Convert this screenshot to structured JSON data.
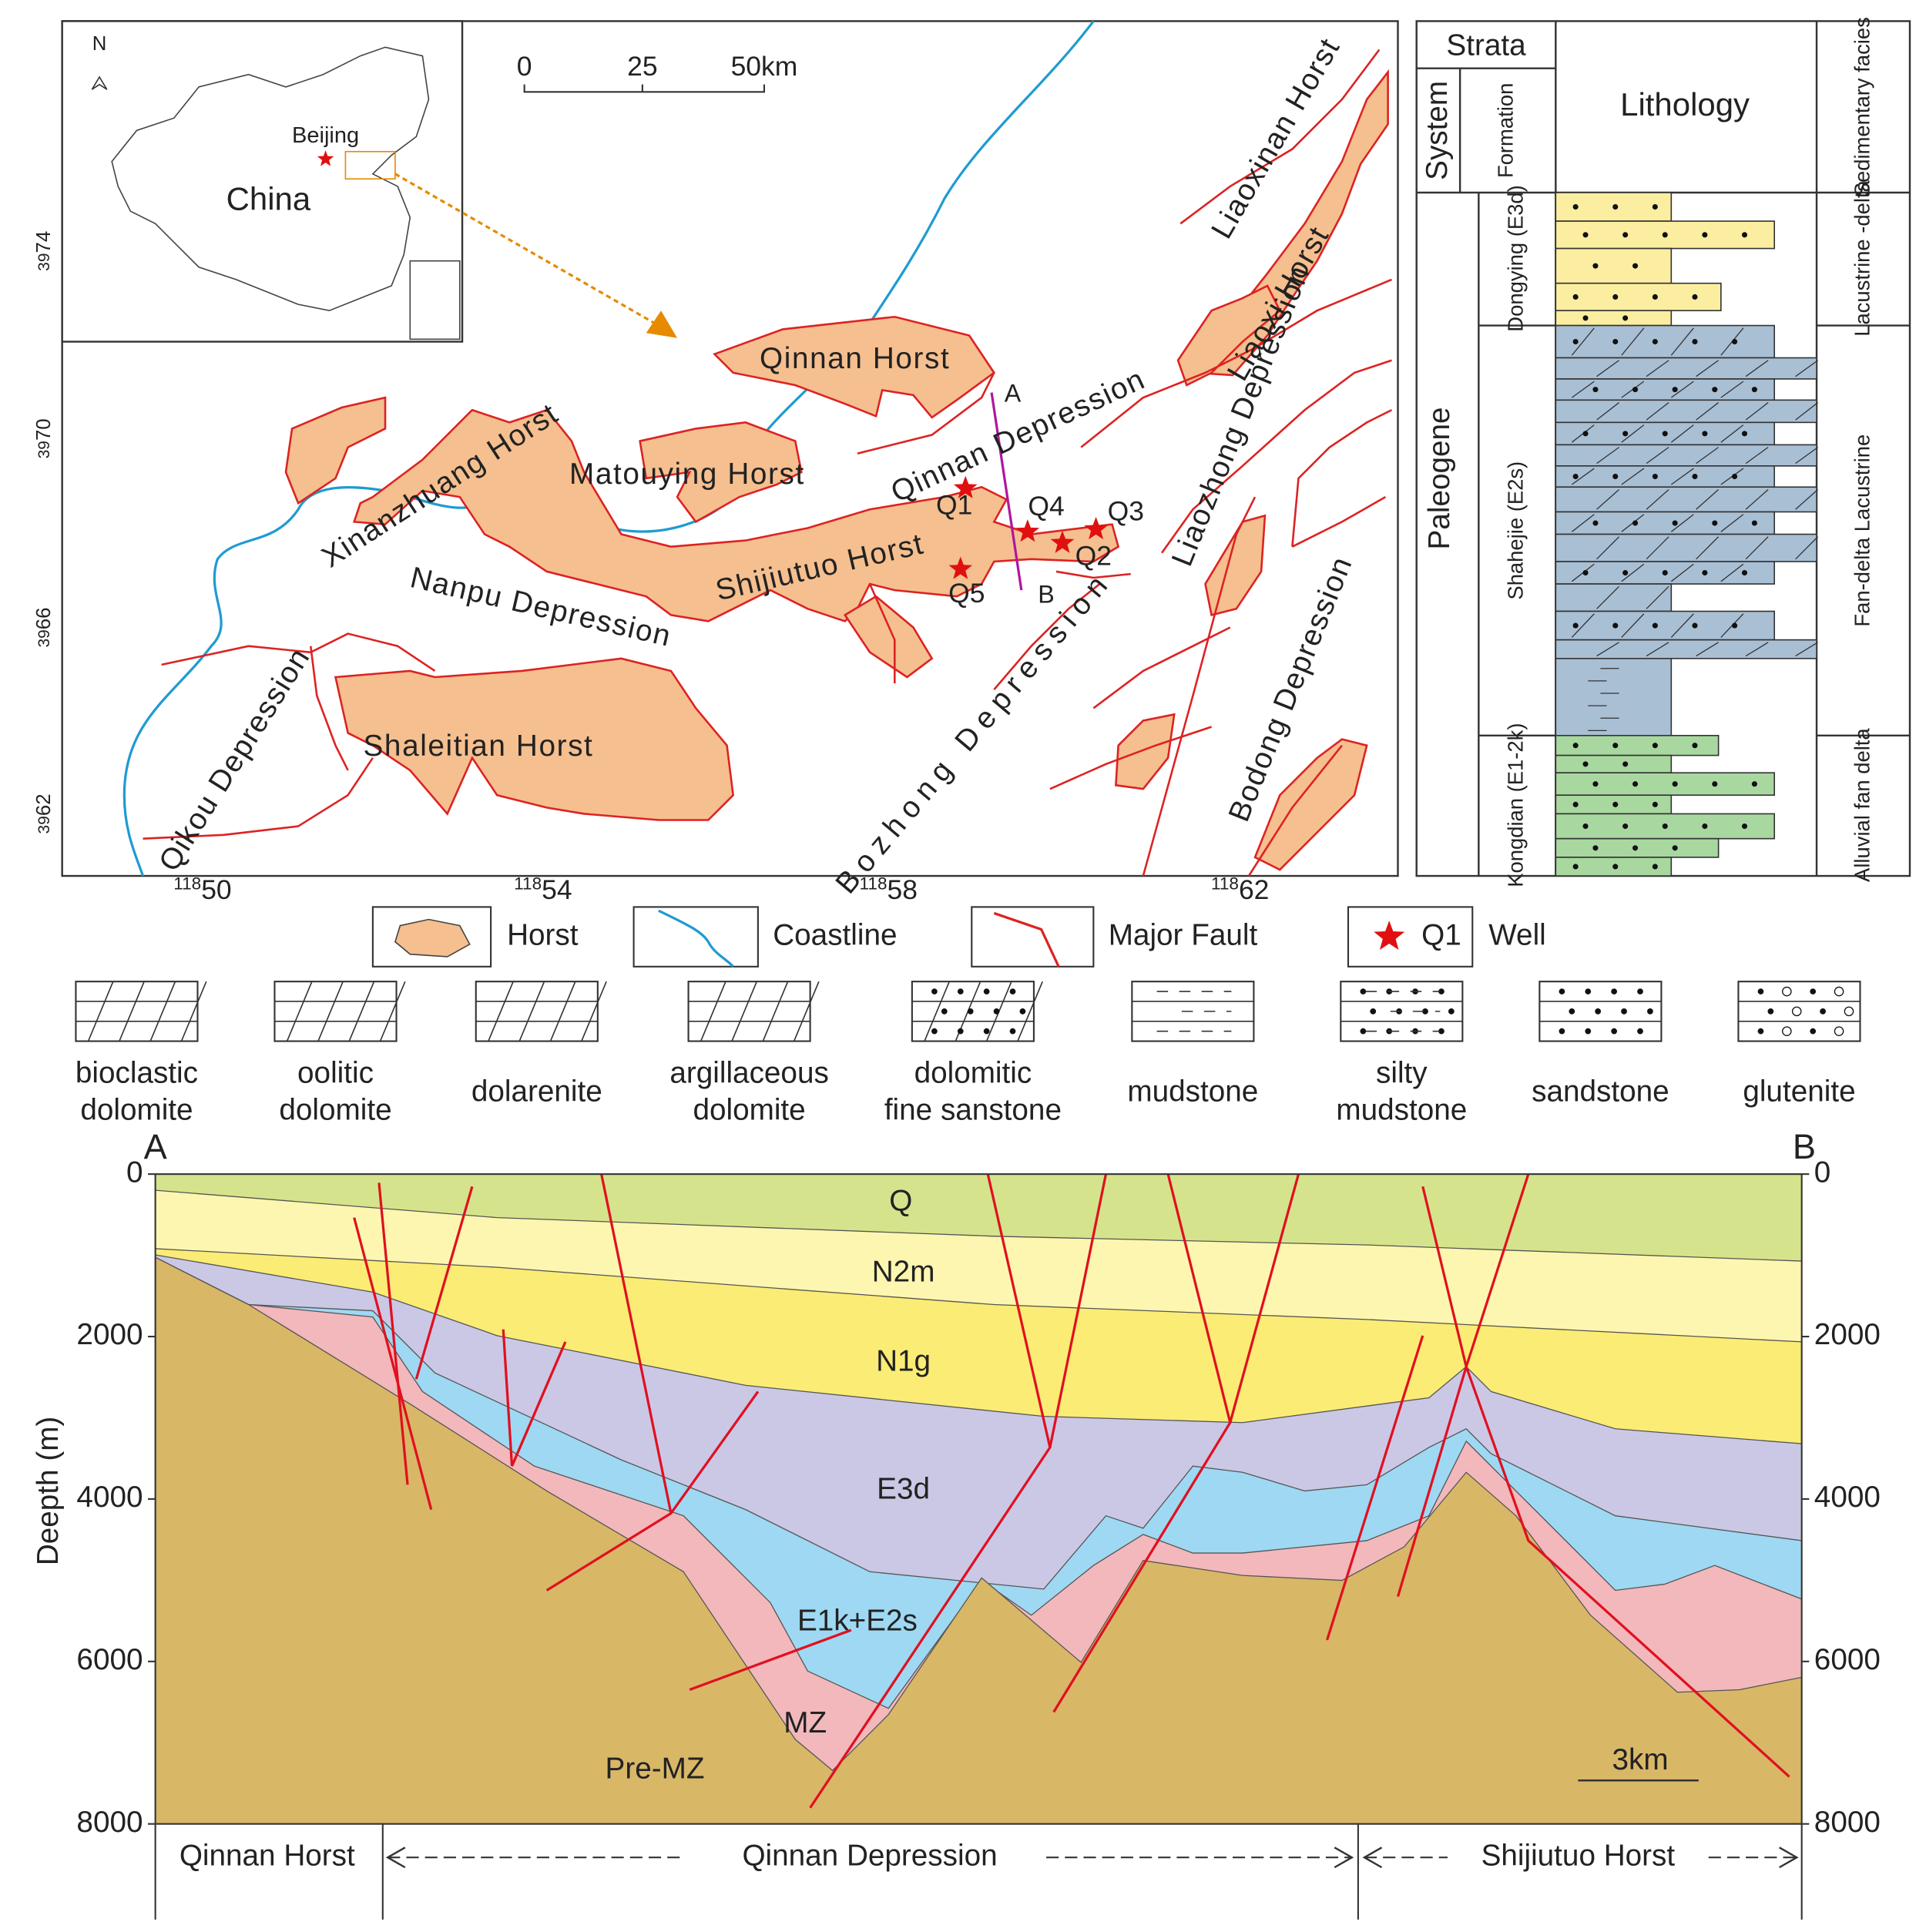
{
  "map": {
    "scale_labels": [
      "0",
      "25",
      "50km"
    ],
    "inset": {
      "north": "N",
      "city": "Beijing",
      "country": "China"
    },
    "lat_labels": [
      [
        "39",
        "74"
      ],
      [
        "39",
        "70"
      ],
      [
        "39",
        "66"
      ],
      [
        "39",
        "62"
      ]
    ],
    "lon_labels": [
      [
        "118",
        "50"
      ],
      [
        "118",
        "54"
      ],
      [
        "118",
        "58"
      ],
      [
        "118",
        "62"
      ]
    ],
    "features": [
      "Qinnan Horst",
      "Matouying Horst",
      "Xinanzhuang Horst",
      "Shijiutuo Horst",
      "Nanpu Depression",
      "Qinnan Depression",
      "Shaleitian Horst",
      "Qikou Depression",
      "Bozhong Depression",
      "Liaozhong Depression",
      "Liaoxinan Horst",
      "Liaoxi Horst",
      "Bodong Depression"
    ],
    "wells": [
      "Q1",
      "Q2",
      "Q3",
      "Q4",
      "Q5"
    ],
    "section_ends": [
      "A",
      "B"
    ]
  },
  "column": {
    "headers": {
      "strata": "Strata",
      "system": "System",
      "formation": "Formation",
      "lithology": "Lithology",
      "facies": "Sedimentary facies"
    },
    "system": "Paleogene",
    "formations": [
      "Dongying (E3d)",
      "Shahejie (E2s)",
      "Kongdian (E1-2k)"
    ],
    "facies": [
      "Lacustrine -delta",
      "Fan-delta Lacustrine",
      "Alluvial fan delta"
    ]
  },
  "legend": {
    "horst": "Horst",
    "coastline": "Coastline",
    "fault": "Major Fault",
    "well_symbol": "Q1",
    "well": "Well",
    "lithologies": [
      [
        "bioclastic",
        "dolomite"
      ],
      [
        "oolitic",
        "dolomite"
      ],
      [
        "dolarenite"
      ],
      [
        "argillaceous",
        "dolomite"
      ],
      [
        "dolomitic",
        "fine sanstone"
      ],
      [
        "mudstone"
      ],
      [
        "silty",
        "mudstone"
      ],
      [
        "sandstone"
      ],
      [
        "glutenite"
      ]
    ]
  },
  "section": {
    "ends": [
      "A",
      "B"
    ],
    "axis_label": "Deepth (m)",
    "depth_ticks": [
      0,
      2000,
      4000,
      6000,
      8000
    ],
    "units": [
      "Q",
      "N2m",
      "N1g",
      "E3d",
      "E1k+E2s",
      "MZ",
      "Pre-MZ"
    ],
    "zones": [
      "Qinnan Horst",
      "Qinnan Depression",
      "Shijiutuo Horst"
    ],
    "scale": "3km"
  }
}
